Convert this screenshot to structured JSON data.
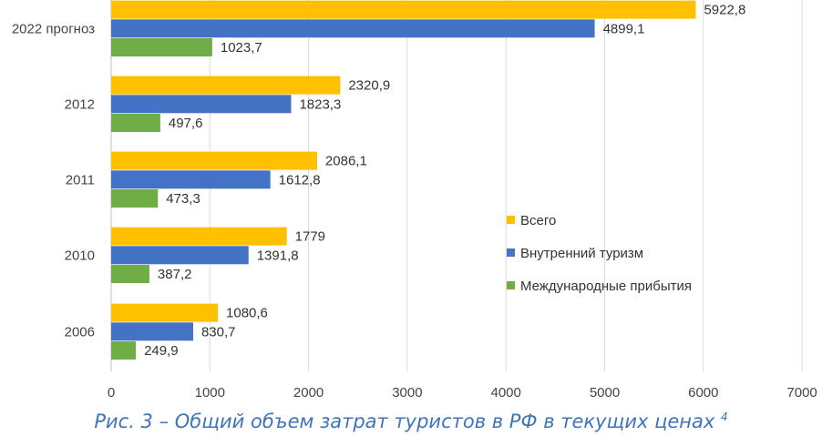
{
  "chart_data": {
    "type": "bar",
    "orientation": "horizontal",
    "categories": [
      "2006",
      "2010",
      "2011",
      "2012",
      "2022 прогноз"
    ],
    "series": [
      {
        "name": "Всего",
        "color": "#ffc000",
        "values": [
          1080.6,
          1779,
          2086.1,
          2320.9,
          5922.8
        ],
        "labels": [
          "1080,6",
          "1779",
          "2086,1",
          "2320,9",
          "5922,8"
        ]
      },
      {
        "name": "Внутренний туризм",
        "color": "#4472c4",
        "values": [
          830.7,
          1391.8,
          1612.8,
          1823.3,
          4899.1
        ],
        "labels": [
          "830,7",
          "1391,8",
          "1612,8",
          "1823,3",
          "4899,1"
        ]
      },
      {
        "name": "Международные прибытия",
        "color": "#70ad47",
        "values": [
          249.9,
          387.2,
          473.3,
          497.6,
          1023.7
        ],
        "labels": [
          "249,9",
          "387,2",
          "473,3",
          "497,6",
          "1023,7"
        ]
      }
    ],
    "xlim": [
      0,
      7000
    ],
    "x_ticks": [
      "0",
      "1000",
      "2000",
      "3000",
      "4000",
      "5000",
      "6000",
      "7000"
    ],
    "grid": "vertical",
    "legend_position": "right"
  },
  "caption": {
    "text": "Рис. 3 – Общий объем затрат туристов в РФ в текущих ценах",
    "footnote": "4"
  }
}
